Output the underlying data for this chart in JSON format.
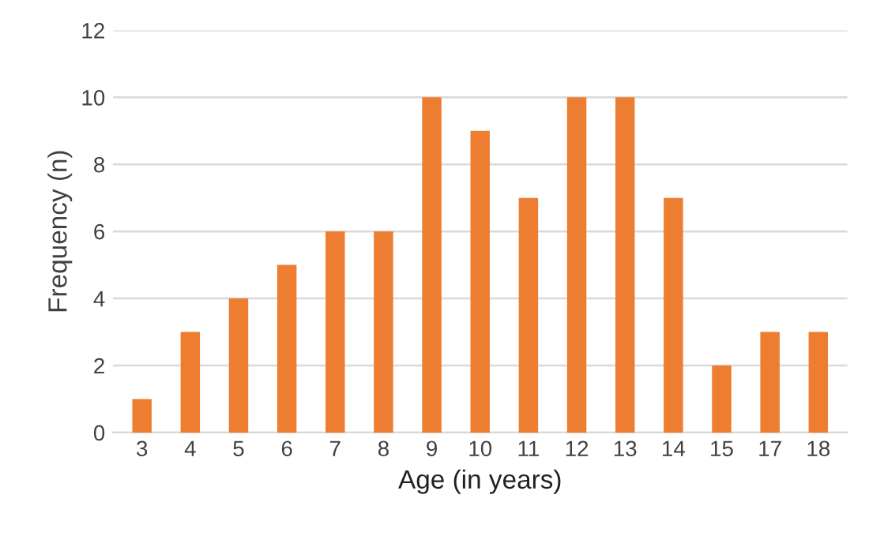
{
  "chart_data": {
    "type": "bar",
    "xlabel": "Age (in years)",
    "ylabel": "Frequency (n)",
    "categories": [
      "3",
      "4",
      "5",
      "6",
      "7",
      "8",
      "9",
      "10",
      "11",
      "12",
      "13",
      "14",
      "15",
      "17",
      "18"
    ],
    "values": [
      1,
      3,
      4,
      5,
      6,
      6,
      10,
      9,
      7,
      10,
      10,
      7,
      2,
      3,
      3
    ],
    "color": "#ed7d31",
    "ylim": [
      0,
      12
    ],
    "yticks": [
      0,
      2,
      4,
      6,
      8,
      10,
      12
    ],
    "grid": "y"
  }
}
